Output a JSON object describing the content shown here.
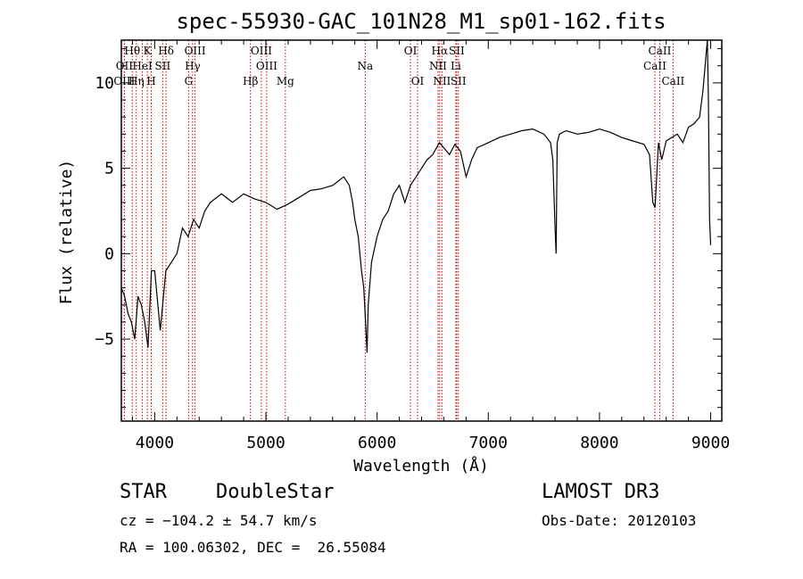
{
  "chart_data": {
    "type": "line",
    "title": "spec-55930-GAC_101N28_M1_sp01-162.fits",
    "xlabel": "Wavelength (Å)",
    "ylabel": "Flux (relative)",
    "xlim": [
      3700,
      9100
    ],
    "ylim": [
      -9.8,
      12.5
    ],
    "xticks": [
      4000,
      5000,
      6000,
      7000,
      8000,
      9000
    ],
    "xtick_labels": [
      "4000",
      "5000",
      "6000",
      "7000",
      "8000",
      "9000"
    ],
    "yticks": [
      -5,
      0,
      5,
      10
    ],
    "ytick_labels": [
      "−5",
      "0",
      "5",
      "10"
    ],
    "grid": false,
    "series": [
      {
        "name": "spectrum",
        "x": [
          3700,
          3730,
          3760,
          3790,
          3820,
          3850,
          3880,
          3910,
          3940,
          3970,
          4000,
          4050,
          4100,
          4150,
          4200,
          4250,
          4300,
          4350,
          4400,
          4450,
          4500,
          4600,
          4700,
          4800,
          4900,
          5000,
          5100,
          5200,
          5300,
          5400,
          5500,
          5600,
          5700,
          5750,
          5780,
          5800,
          5830,
          5860,
          5880,
          5900,
          5910,
          5920,
          5950,
          6000,
          6050,
          6100,
          6150,
          6200,
          6250,
          6300,
          6350,
          6400,
          6450,
          6500,
          6560,
          6600,
          6650,
          6700,
          6750,
          6800,
          6850,
          6900,
          7000,
          7100,
          7200,
          7300,
          7400,
          7500,
          7560,
          7580,
          7600,
          7610,
          7620,
          7640,
          7700,
          7800,
          7900,
          8000,
          8100,
          8200,
          8300,
          8400,
          8450,
          8480,
          8500,
          8530,
          8560,
          8600,
          8650,
          8700,
          8750,
          8800,
          8850,
          8900,
          8930,
          8950,
          8970,
          8980,
          8990,
          9000
        ],
        "y": [
          -2.0,
          -2.5,
          -3.5,
          -4.0,
          -5.0,
          -2.5,
          -3.0,
          -4.0,
          -5.5,
          -1.0,
          -1.0,
          -4.5,
          -1.0,
          -0.5,
          0.0,
          1.5,
          1.0,
          2.0,
          1.5,
          2.5,
          3.0,
          3.5,
          3.0,
          3.5,
          3.2,
          3.0,
          2.6,
          2.9,
          3.3,
          3.7,
          3.8,
          4.0,
          4.5,
          4.0,
          3.0,
          2.0,
          1.0,
          -1.0,
          -2.0,
          -4.5,
          -5.8,
          -3.0,
          -0.5,
          1.0,
          2.0,
          2.5,
          3.5,
          4.0,
          3.0,
          4.0,
          4.5,
          5.0,
          5.5,
          5.8,
          6.5,
          6.2,
          5.8,
          6.4,
          6.0,
          4.5,
          5.5,
          6.2,
          6.5,
          6.8,
          7.0,
          7.2,
          7.3,
          7.0,
          6.5,
          5.5,
          1.5,
          0.0,
          6.5,
          7.0,
          7.2,
          7.0,
          7.1,
          7.3,
          7.1,
          6.8,
          6.6,
          6.4,
          5.8,
          3.0,
          2.7,
          6.5,
          5.5,
          6.6,
          6.8,
          7.0,
          6.5,
          7.4,
          7.6,
          8.0,
          9.5,
          11.0,
          12.5,
          9.0,
          2.0,
          0.5
        ]
      }
    ],
    "spectral_lines": [
      {
        "label": "Hθ",
        "x": 3798,
        "row": 1
      },
      {
        "label": "OII",
        "x": 3727,
        "row": 2
      },
      {
        "label": "OIII",
        "x": 3727,
        "row": 3
      },
      {
        "label": "Hη",
        "x": 3835,
        "row": 3
      },
      {
        "label": "HeI",
        "x": 3889,
        "row": 2
      },
      {
        "label": "K",
        "x": 3934,
        "row": 1
      },
      {
        "label": "H",
        "x": 3969,
        "row": 3
      },
      {
        "label": "SII",
        "x": 4072,
        "row": 2
      },
      {
        "label": "Hδ",
        "x": 4102,
        "row": 1
      },
      {
        "label": "OIII",
        "x": 4363,
        "row": 1
      },
      {
        "label": "Hγ",
        "x": 4341,
        "row": 2
      },
      {
        "label": "G",
        "x": 4305,
        "row": 3
      },
      {
        "label": "Hβ",
        "x": 4861,
        "row": 3
      },
      {
        "label": "OIII",
        "x": 4959,
        "row": 1
      },
      {
        "label": "OIII",
        "x": 5007,
        "row": 2
      },
      {
        "label": "Mg",
        "x": 5175,
        "row": 3
      },
      {
        "label": "Na",
        "x": 5893,
        "row": 2
      },
      {
        "label": "OI",
        "x": 6300,
        "row": 1
      },
      {
        "label": "OI",
        "x": 6364,
        "row": 3
      },
      {
        "label": "Hα",
        "x": 6563,
        "row": 1
      },
      {
        "label": "NII",
        "x": 6548,
        "row": 2
      },
      {
        "label": "NII",
        "x": 6583,
        "row": 3
      },
      {
        "label": "SII",
        "x": 6716,
        "row": 1
      },
      {
        "label": "Li",
        "x": 6708,
        "row": 2
      },
      {
        "label": "SII",
        "x": 6731,
        "row": 3
      },
      {
        "label": "CaII",
        "x": 8542,
        "row": 1
      },
      {
        "label": "CaII",
        "x": 8498,
        "row": 2
      },
      {
        "label": "CaII",
        "x": 8662,
        "row": 3
      }
    ]
  },
  "info": {
    "class": "STAR",
    "subclass": "DoubleStar",
    "survey": "LAMOST DR3",
    "cz": "cz = −104.2 ± 54.7 km/s",
    "obs_date": "Obs-Date: 20120103",
    "coords": "RA = 100.06302, DEC =  26.55084"
  }
}
